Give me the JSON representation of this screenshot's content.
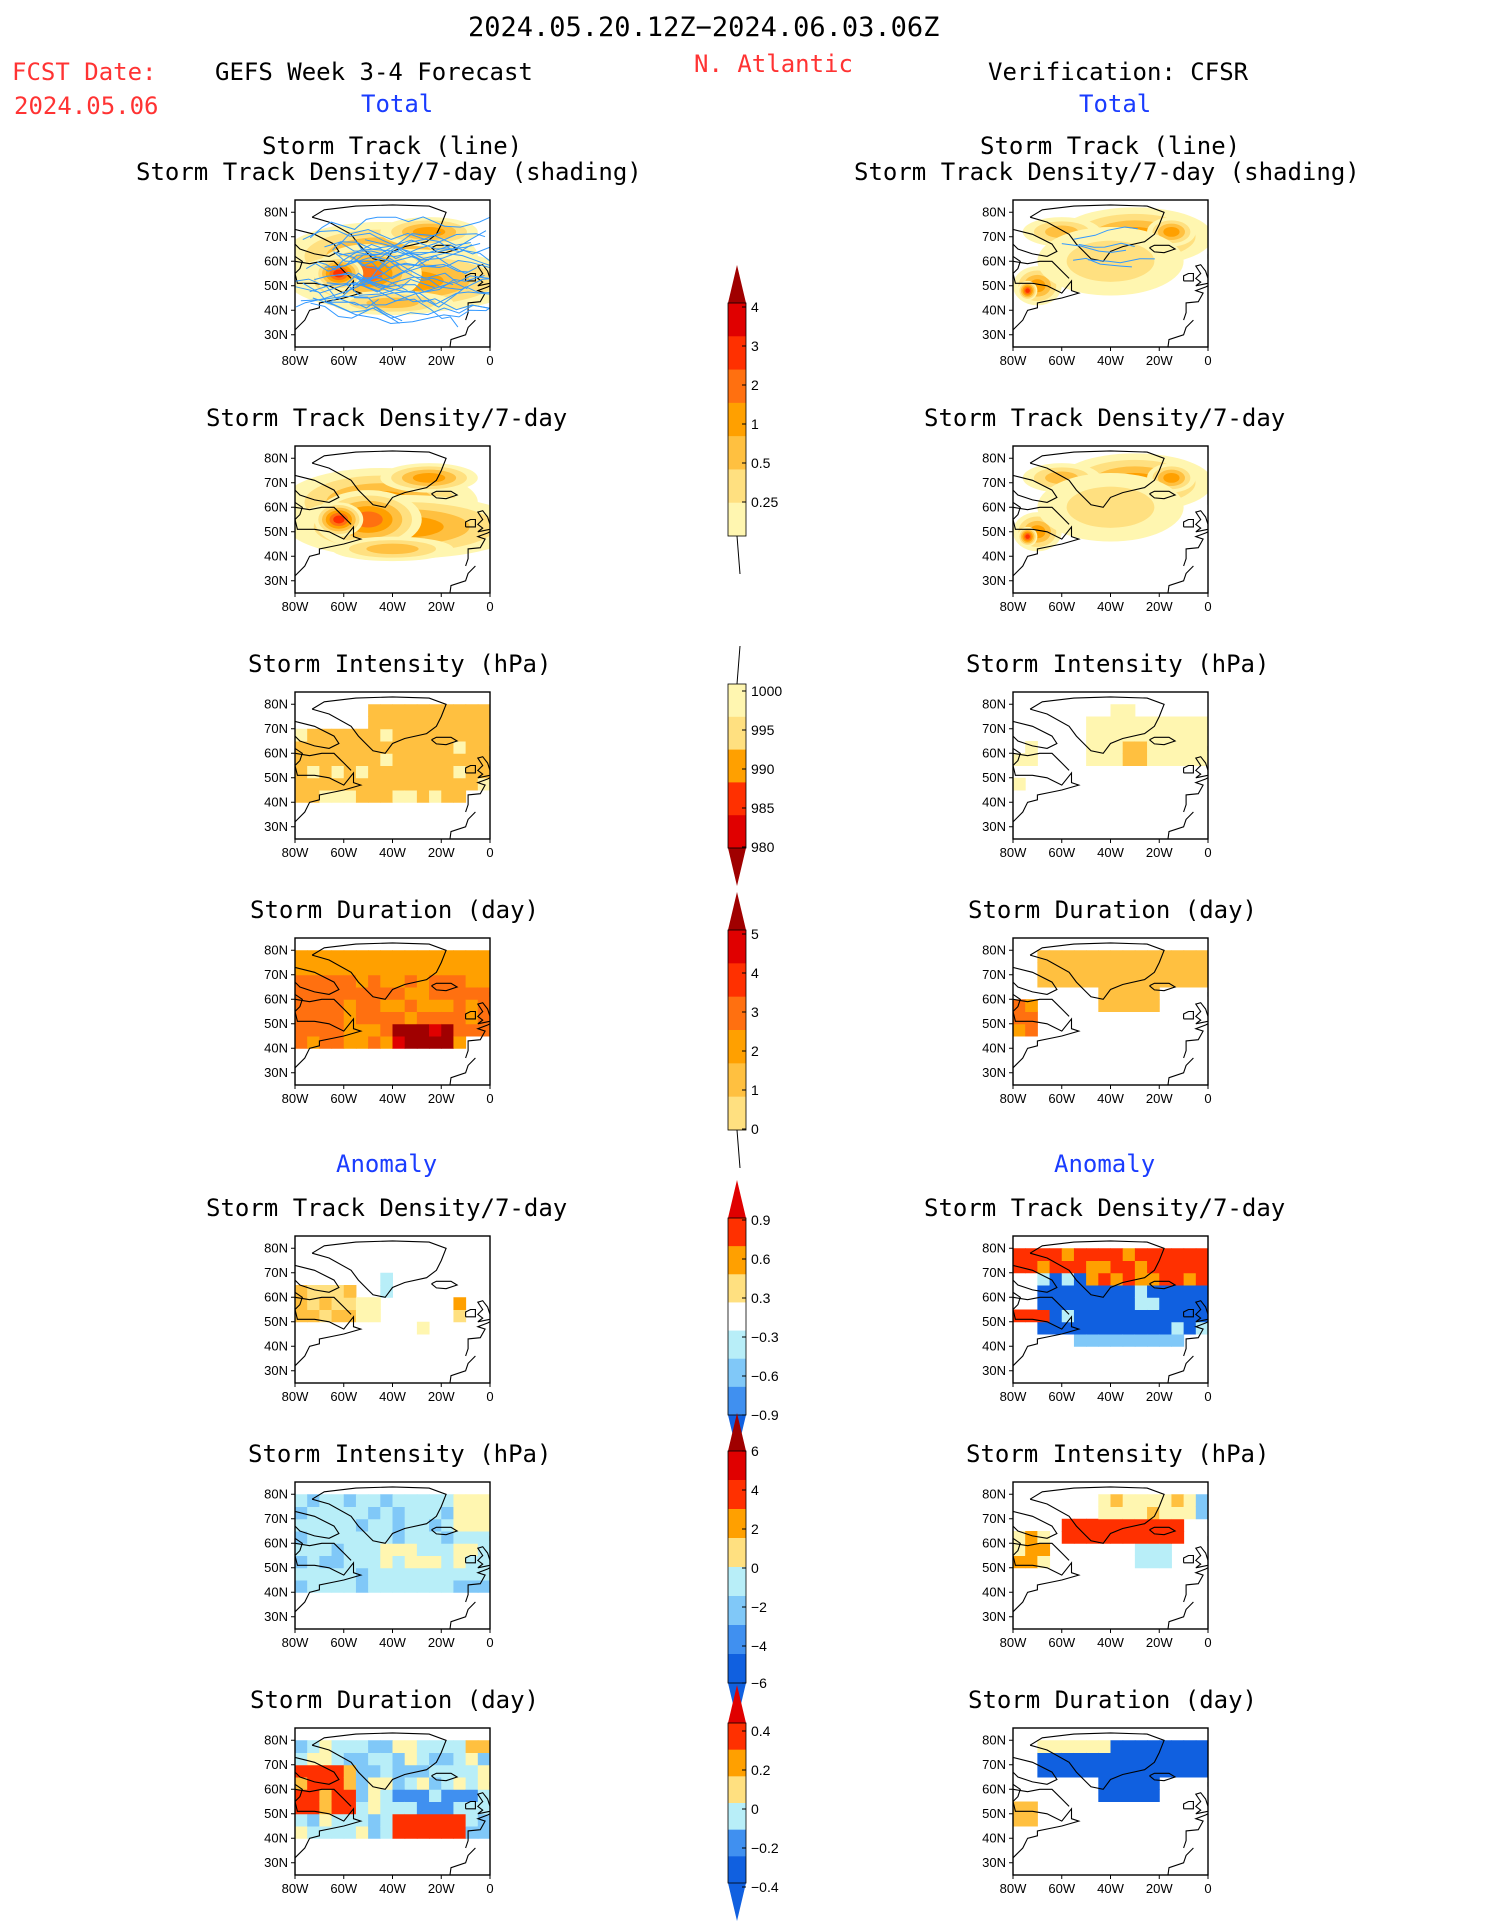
{
  "header": {
    "date_range": "2024.05.20.12Z−2024.06.03.06Z",
    "fcst_label": "FCST Date:",
    "fcst_date": "2024.05.06",
    "left_title": "GEFS Week 3-4 Forecast",
    "region": "N. Atlantic",
    "right_title": "Verification: CFSR"
  },
  "sections": {
    "total": "Total",
    "anomaly": "Anomaly"
  },
  "panel_titles": {
    "track_line": "Storm Track (line)",
    "track_shading": "Storm Track Density/7-day (shading)",
    "density": "Storm Track Density/7-day",
    "intensity": "Storm Intensity (hPa)",
    "duration": "Storm Duration (day)"
  },
  "axes": {
    "lat_labels": [
      "80N",
      "70N",
      "60N",
      "50N",
      "40N",
      "30N"
    ],
    "lon_labels": [
      "80W",
      "60W",
      "40W",
      "20W",
      "0"
    ]
  },
  "colors": {
    "pos": [
      "#fff6b0",
      "#ffe080",
      "#ffc040",
      "#ffa000",
      "#ff7010",
      "#ff3000",
      "#e00000",
      "#a00000"
    ],
    "neg": [
      "#b8eef8",
      "#80c8f8",
      "#4090f0",
      "#1060e0"
    ],
    "track_line": "#3399ff",
    "title_red": "#ff3333",
    "title_blue": "#1a3cff"
  },
  "chart_data": [
    {
      "type": "heatmap",
      "name": "GEFS Total Storm Track (line) + Storm Track Density/7-day (shading)",
      "colorbar": [
        0.25,
        0.5,
        1,
        2,
        3,
        4
      ]
    },
    {
      "type": "heatmap",
      "name": "CFSR Total Storm Track (line) + Storm Track Density/7-day (shading)",
      "colorbar": [
        0.25,
        0.5,
        1,
        2,
        3,
        4
      ]
    },
    {
      "type": "heatmap",
      "name": "GEFS Total Storm Track Density/7-day",
      "colorbar": [
        0.25,
        0.5,
        1,
        2,
        3,
        4
      ]
    },
    {
      "type": "heatmap",
      "name": "CFSR Total Storm Track Density/7-day",
      "colorbar": [
        0.25,
        0.5,
        1,
        2,
        3,
        4
      ]
    },
    {
      "type": "heatmap",
      "name": "GEFS Total Storm Intensity (hPa)",
      "colorbar": [
        980,
        985,
        990,
        995,
        1000
      ]
    },
    {
      "type": "heatmap",
      "name": "CFSR Total Storm Intensity (hPa)",
      "colorbar": [
        980,
        985,
        990,
        995,
        1000
      ]
    },
    {
      "type": "heatmap",
      "name": "GEFS Total Storm Duration (day)",
      "colorbar": [
        0,
        1,
        2,
        3,
        4,
        5
      ]
    },
    {
      "type": "heatmap",
      "name": "CFSR Total Storm Duration (day)",
      "colorbar": [
        0,
        1,
        2,
        3,
        4,
        5
      ]
    },
    {
      "type": "heatmap",
      "name": "GEFS Anomaly Storm Track Density/7-day",
      "colorbar": [
        -0.9,
        -0.6,
        -0.3,
        0.3,
        0.6,
        0.9
      ]
    },
    {
      "type": "heatmap",
      "name": "CFSR Anomaly Storm Track Density/7-day",
      "colorbar": [
        -0.9,
        -0.6,
        -0.3,
        0.3,
        0.6,
        0.9
      ]
    },
    {
      "type": "heatmap",
      "name": "GEFS Anomaly Storm Intensity (hPa)",
      "colorbar": [
        -6,
        -4,
        -2,
        0,
        2,
        4,
        6
      ]
    },
    {
      "type": "heatmap",
      "name": "CFSR Anomaly Storm Intensity (hPa)",
      "colorbar": [
        -6,
        -4,
        -2,
        0,
        2,
        4,
        6
      ]
    },
    {
      "type": "heatmap",
      "name": "GEFS Anomaly Storm Duration (day)",
      "colorbar": [
        -0.4,
        -0.2,
        0,
        0.2,
        0.4
      ]
    },
    {
      "type": "heatmap",
      "name": "CFSR Anomaly Storm Duration (day)",
      "colorbar": [
        -0.4,
        -0.2,
        0,
        0.2,
        0.4
      ]
    }
  ],
  "colorbars": [
    {
      "id": "density",
      "labels": [
        "4",
        "3",
        "2",
        "1",
        "0.5",
        "0.25"
      ]
    },
    {
      "id": "intensity",
      "labels": [
        "1000",
        "995",
        "990",
        "985",
        "980"
      ]
    },
    {
      "id": "duration",
      "labels": [
        "5",
        "4",
        "3",
        "2",
        "1",
        "0"
      ]
    },
    {
      "id": "anom_density",
      "labels": [
        "0.9",
        "0.6",
        "0.3",
        "−0.3",
        "−0.6",
        "−0.9"
      ]
    },
    {
      "id": "anom_intensity",
      "labels": [
        "6",
        "4",
        "2",
        "0",
        "−2",
        "−4",
        "−6"
      ]
    },
    {
      "id": "anom_duration",
      "labels": [
        "0.4",
        "0.2",
        "0",
        "−0.2",
        "−0.4"
      ]
    }
  ]
}
